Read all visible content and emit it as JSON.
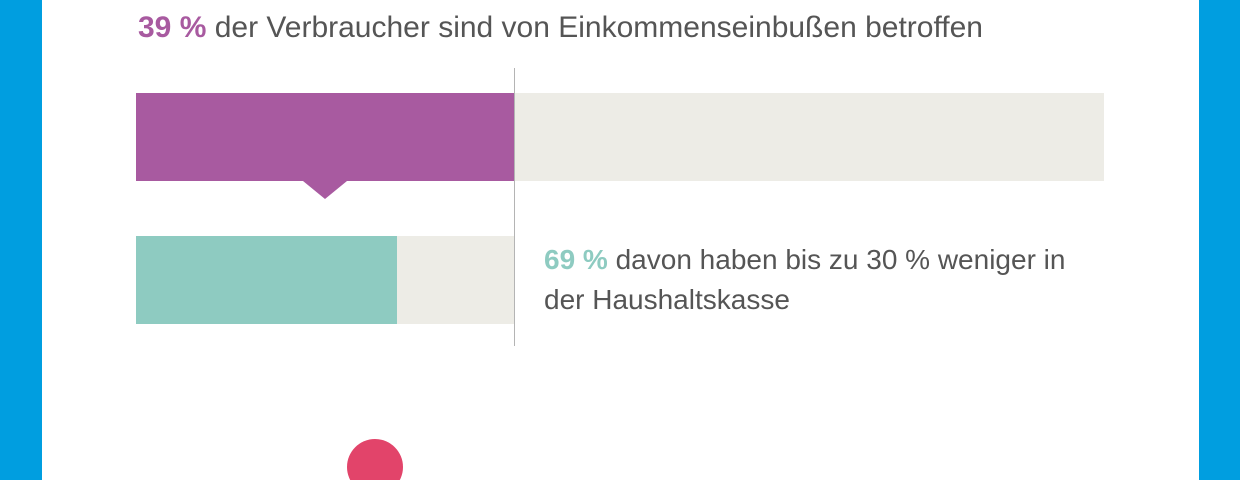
{
  "colors": {
    "frame": "#009ee0",
    "purple": "#a85aa0",
    "teal": "#8ecbc1",
    "track": "#edece6",
    "text": "#555555",
    "divider": "#b4b4b4",
    "dot": "#e2446a"
  },
  "headline": {
    "pct": "39 %",
    "text": " der Verbraucher sind von Einkommenseinbußen betroffen"
  },
  "subtext": {
    "pct": "69 %",
    "text": " davon haben bis zu 30 % weniger in der Haushaltskasse"
  },
  "chart_data": {
    "type": "bar",
    "orientation": "horizontal",
    "bars": [
      {
        "value": 0.39,
        "of": 1
      },
      {
        "value": 0.69,
        "of": 1
      }
    ],
    "note": ""
  }
}
